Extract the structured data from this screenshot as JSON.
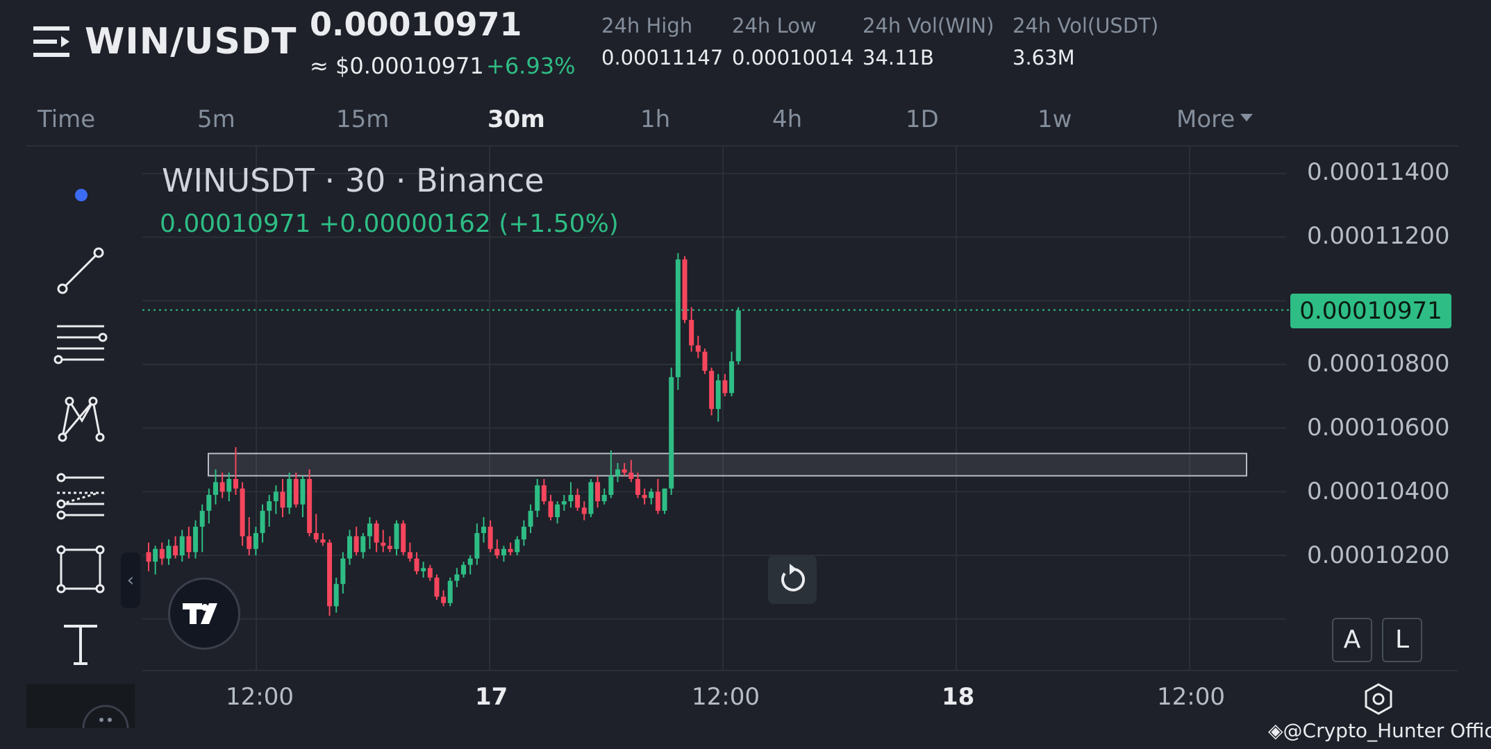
{
  "header": {
    "pair": "WIN/USDT",
    "last_price": "0.00010971",
    "usd_price": "≈ $0.00010971",
    "change_pct": "+6.93%",
    "stats": [
      {
        "label": "24h High",
        "value": "0.00011147"
      },
      {
        "label": "24h Low",
        "value": "0.00010014"
      },
      {
        "label": "24h Vol(WIN)",
        "value": "34.11B"
      },
      {
        "label": "24h Vol(USDT)",
        "value": "3.63M"
      }
    ]
  },
  "timeframes": {
    "items": [
      "Time",
      "5m",
      "15m",
      "30m",
      "1h",
      "4h",
      "1D",
      "1w",
      "More"
    ],
    "active": "30m"
  },
  "chart": {
    "legend_title": "WINUSDT · 30 · Binance",
    "legend_values": "0.00010971  +0.00000162 (+1.50%)",
    "current_price_tag": "0.00010971",
    "y_ticks": [
      "0.00011400",
      "0.00011200",
      "0.00010800",
      "0.00010600",
      "0.00010400",
      "0.00010200"
    ],
    "x_ticks": [
      "12:00",
      "17",
      "12:00",
      "18",
      "12:00"
    ],
    "scale_buttons": {
      "auto": "A",
      "log": "L"
    },
    "colors": {
      "up": "#2ebd85",
      "down": "#f6465d",
      "background": "#1e2129",
      "grid": "#2b2f36"
    }
  },
  "watermark": "@Crypto_Hunter Offici...",
  "chart_data": {
    "type": "candlestick",
    "title": "WINUSDT · 30 · Binance",
    "ylim": [
      0.0001,
      0.000115
    ],
    "x_ticks": [
      "12:00",
      "17",
      "12:00",
      "18",
      "12:00"
    ],
    "grid": true,
    "highlight_zone": [
      0.0001045,
      0.0001052
    ],
    "current_price": 0.00010971,
    "candles": [
      {
        "o": 0.0001021,
        "h": 0.0001024,
        "l": 0.0001015,
        "c": 0.0001018
      },
      {
        "o": 0.0001018,
        "h": 0.0001023,
        "l": 0.0001014,
        "c": 0.0001022
      },
      {
        "o": 0.0001022,
        "h": 0.0001024,
        "l": 0.0001017,
        "c": 0.0001019
      },
      {
        "o": 0.0001019,
        "h": 0.0001025,
        "l": 0.0001017,
        "c": 0.0001023
      },
      {
        "o": 0.0001023,
        "h": 0.0001026,
        "l": 0.0001019,
        "c": 0.000102
      },
      {
        "o": 0.000102,
        "h": 0.0001028,
        "l": 0.0001018,
        "c": 0.0001026
      },
      {
        "o": 0.0001026,
        "h": 0.0001029,
        "l": 0.0001019,
        "c": 0.0001021
      },
      {
        "o": 0.0001021,
        "h": 0.0001031,
        "l": 0.0001019,
        "c": 0.0001029
      },
      {
        "o": 0.0001029,
        "h": 0.0001036,
        "l": 0.0001021,
        "c": 0.0001034
      },
      {
        "o": 0.0001034,
        "h": 0.0001041,
        "l": 0.000103,
        "c": 0.0001039
      },
      {
        "o": 0.0001039,
        "h": 0.0001047,
        "l": 0.0001036,
        "c": 0.0001043
      },
      {
        "o": 0.0001043,
        "h": 0.0001046,
        "l": 0.0001038,
        "c": 0.000104
      },
      {
        "o": 0.000104,
        "h": 0.0001046,
        "l": 0.0001037,
        "c": 0.0001044
      },
      {
        "o": 0.0001044,
        "h": 0.0001054,
        "l": 0.0001039,
        "c": 0.0001041
      },
      {
        "o": 0.0001041,
        "h": 0.0001043,
        "l": 0.0001023,
        "c": 0.0001026
      },
      {
        "o": 0.0001026,
        "h": 0.0001032,
        "l": 0.000102,
        "c": 0.0001022
      },
      {
        "o": 0.0001022,
        "h": 0.0001029,
        "l": 0.000102,
        "c": 0.0001027
      },
      {
        "o": 0.0001027,
        "h": 0.0001036,
        "l": 0.0001024,
        "c": 0.0001034
      },
      {
        "o": 0.0001034,
        "h": 0.0001039,
        "l": 0.0001029,
        "c": 0.0001037
      },
      {
        "o": 0.0001037,
        "h": 0.0001042,
        "l": 0.0001033,
        "c": 0.000104
      },
      {
        "o": 0.000104,
        "h": 0.0001044,
        "l": 0.0001032,
        "c": 0.0001035
      },
      {
        "o": 0.0001035,
        "h": 0.0001046,
        "l": 0.0001033,
        "c": 0.0001044
      },
      {
        "o": 0.0001044,
        "h": 0.0001046,
        "l": 0.0001035,
        "c": 0.0001036
      },
      {
        "o": 0.0001036,
        "h": 0.0001045,
        "l": 0.0001032,
        "c": 0.0001044
      },
      {
        "o": 0.0001044,
        "h": 0.0001047,
        "l": 0.0001026,
        "c": 0.0001027
      },
      {
        "o": 0.0001027,
        "h": 0.0001033,
        "l": 0.0001024,
        "c": 0.0001025
      },
      {
        "o": 0.0001025,
        "h": 0.0001027,
        "l": 0.0001023,
        "c": 0.0001024
      },
      {
        "o": 0.0001024,
        "h": 0.0001025,
        "l": 0.0001001,
        "c": 0.0001004
      },
      {
        "o": 0.0001004,
        "h": 0.0001013,
        "l": 0.0001002,
        "c": 0.0001011
      },
      {
        "o": 0.0001011,
        "h": 0.0001021,
        "l": 0.0001008,
        "c": 0.0001019
      },
      {
        "o": 0.0001019,
        "h": 0.0001028,
        "l": 0.0001017,
        "c": 0.0001026
      },
      {
        "o": 0.0001026,
        "h": 0.0001029,
        "l": 0.000102,
        "c": 0.0001021
      },
      {
        "o": 0.0001021,
        "h": 0.0001027,
        "l": 0.0001019,
        "c": 0.0001026
      },
      {
        "o": 0.0001026,
        "h": 0.0001032,
        "l": 0.0001022,
        "c": 0.000103
      },
      {
        "o": 0.000103,
        "h": 0.0001031,
        "l": 0.0001021,
        "c": 0.0001024
      },
      {
        "o": 0.0001024,
        "h": 0.0001028,
        "l": 0.0001021,
        "c": 0.0001023
      },
      {
        "o": 0.0001023,
        "h": 0.0001026,
        "l": 0.0001021,
        "c": 0.0001022
      },
      {
        "o": 0.0001022,
        "h": 0.0001031,
        "l": 0.000102,
        "c": 0.000103
      },
      {
        "o": 0.000103,
        "h": 0.0001031,
        "l": 0.000102,
        "c": 0.0001021
      },
      {
        "o": 0.0001021,
        "h": 0.0001024,
        "l": 0.0001018,
        "c": 0.0001019
      },
      {
        "o": 0.0001019,
        "h": 0.0001021,
        "l": 0.0001014,
        "c": 0.0001015
      },
      {
        "o": 0.0001015,
        "h": 0.0001018,
        "l": 0.0001013,
        "c": 0.0001016
      },
      {
        "o": 0.0001016,
        "h": 0.0001017,
        "l": 0.0001012,
        "c": 0.0001013
      },
      {
        "o": 0.0001013,
        "h": 0.0001014,
        "l": 0.0001006,
        "c": 0.0001007
      },
      {
        "o": 0.0001007,
        "h": 0.0001009,
        "l": 0.0001004,
        "c": 0.0001005
      },
      {
        "o": 0.0001005,
        "h": 0.0001013,
        "l": 0.0001004,
        "c": 0.0001012
      },
      {
        "o": 0.0001012,
        "h": 0.0001016,
        "l": 0.000101,
        "c": 0.0001014
      },
      {
        "o": 0.0001014,
        "h": 0.0001018,
        "l": 0.0001013,
        "c": 0.0001017
      },
      {
        "o": 0.0001017,
        "h": 0.000102,
        "l": 0.0001014,
        "c": 0.0001019
      },
      {
        "o": 0.0001019,
        "h": 0.000103,
        "l": 0.0001017,
        "c": 0.0001027
      },
      {
        "o": 0.0001027,
        "h": 0.0001032,
        "l": 0.0001024,
        "c": 0.0001029
      },
      {
        "o": 0.0001029,
        "h": 0.0001031,
        "l": 0.0001021,
        "c": 0.0001022
      },
      {
        "o": 0.0001022,
        "h": 0.0001025,
        "l": 0.0001019,
        "c": 0.000102
      },
      {
        "o": 0.000102,
        "h": 0.0001023,
        "l": 0.0001018,
        "c": 0.0001022
      },
      {
        "o": 0.0001022,
        "h": 0.0001024,
        "l": 0.000102,
        "c": 0.0001021
      },
      {
        "o": 0.0001021,
        "h": 0.0001026,
        "l": 0.000102,
        "c": 0.0001025
      },
      {
        "o": 0.0001025,
        "h": 0.0001031,
        "l": 0.0001023,
        "c": 0.0001029
      },
      {
        "o": 0.0001029,
        "h": 0.0001036,
        "l": 0.0001027,
        "c": 0.0001034
      },
      {
        "o": 0.0001034,
        "h": 0.0001044,
        "l": 0.0001032,
        "c": 0.0001042
      },
      {
        "o": 0.0001042,
        "h": 0.0001044,
        "l": 0.0001036,
        "c": 0.0001037
      },
      {
        "o": 0.0001037,
        "h": 0.0001039,
        "l": 0.0001031,
        "c": 0.0001032
      },
      {
        "o": 0.0001032,
        "h": 0.0001037,
        "l": 0.000103,
        "c": 0.0001036
      },
      {
        "o": 0.0001036,
        "h": 0.0001039,
        "l": 0.0001034,
        "c": 0.0001037
      },
      {
        "o": 0.0001037,
        "h": 0.0001043,
        "l": 0.0001035,
        "c": 0.0001039
      },
      {
        "o": 0.0001039,
        "h": 0.0001041,
        "l": 0.0001034,
        "c": 0.0001035
      },
      {
        "o": 0.0001035,
        "h": 0.0001037,
        "l": 0.0001031,
        "c": 0.0001033
      },
      {
        "o": 0.0001033,
        "h": 0.0001044,
        "l": 0.0001032,
        "c": 0.0001043
      },
      {
        "o": 0.0001043,
        "h": 0.0001045,
        "l": 0.0001035,
        "c": 0.0001037
      },
      {
        "o": 0.0001037,
        "h": 0.0001041,
        "l": 0.0001036,
        "c": 0.0001039
      },
      {
        "o": 0.0001039,
        "h": 0.0001053,
        "l": 0.0001038,
        "c": 0.0001045
      },
      {
        "o": 0.0001045,
        "h": 0.0001049,
        "l": 0.0001043,
        "c": 0.0001047
      },
      {
        "o": 0.0001047,
        "h": 0.0001049,
        "l": 0.0001045,
        "c": 0.0001046
      },
      {
        "o": 0.0001046,
        "h": 0.000105,
        "l": 0.0001043,
        "c": 0.0001044
      },
      {
        "o": 0.0001044,
        "h": 0.0001046,
        "l": 0.0001038,
        "c": 0.0001039
      },
      {
        "o": 0.0001039,
        "h": 0.0001041,
        "l": 0.0001036,
        "c": 0.0001038
      },
      {
        "o": 0.0001038,
        "h": 0.0001041,
        "l": 0.0001036,
        "c": 0.000104
      },
      {
        "o": 0.000104,
        "h": 0.0001044,
        "l": 0.0001033,
        "c": 0.0001034
      },
      {
        "o": 0.0001034,
        "h": 0.0001041,
        "l": 0.0001033,
        "c": 0.0001041
      },
      {
        "o": 0.0001041,
        "h": 0.0001079,
        "l": 0.0001039,
        "c": 0.0001076
      },
      {
        "o": 0.0001076,
        "h": 0.0001115,
        "l": 0.0001072,
        "c": 0.0001113
      },
      {
        "o": 0.0001113,
        "h": 0.0001114,
        "l": 0.0001093,
        "c": 0.0001094
      },
      {
        "o": 0.0001094,
        "h": 0.0001098,
        "l": 0.0001084,
        "c": 0.0001086
      },
      {
        "o": 0.0001086,
        "h": 0.0001089,
        "l": 0.0001082,
        "c": 0.0001084
      },
      {
        "o": 0.0001084,
        "h": 0.0001085,
        "l": 0.0001077,
        "c": 0.0001078
      },
      {
        "o": 0.0001078,
        "h": 0.0001079,
        "l": 0.0001064,
        "c": 0.0001066
      },
      {
        "o": 0.0001066,
        "h": 0.0001077,
        "l": 0.0001062,
        "c": 0.0001075
      },
      {
        "o": 0.0001075,
        "h": 0.0001077,
        "l": 0.000107,
        "c": 0.0001071
      },
      {
        "o": 0.0001071,
        "h": 0.0001084,
        "l": 0.000107,
        "c": 0.0001081
      },
      {
        "o": 0.0001081,
        "h": 0.0001098,
        "l": 0.000108,
        "c": 0.0001097
      }
    ]
  }
}
